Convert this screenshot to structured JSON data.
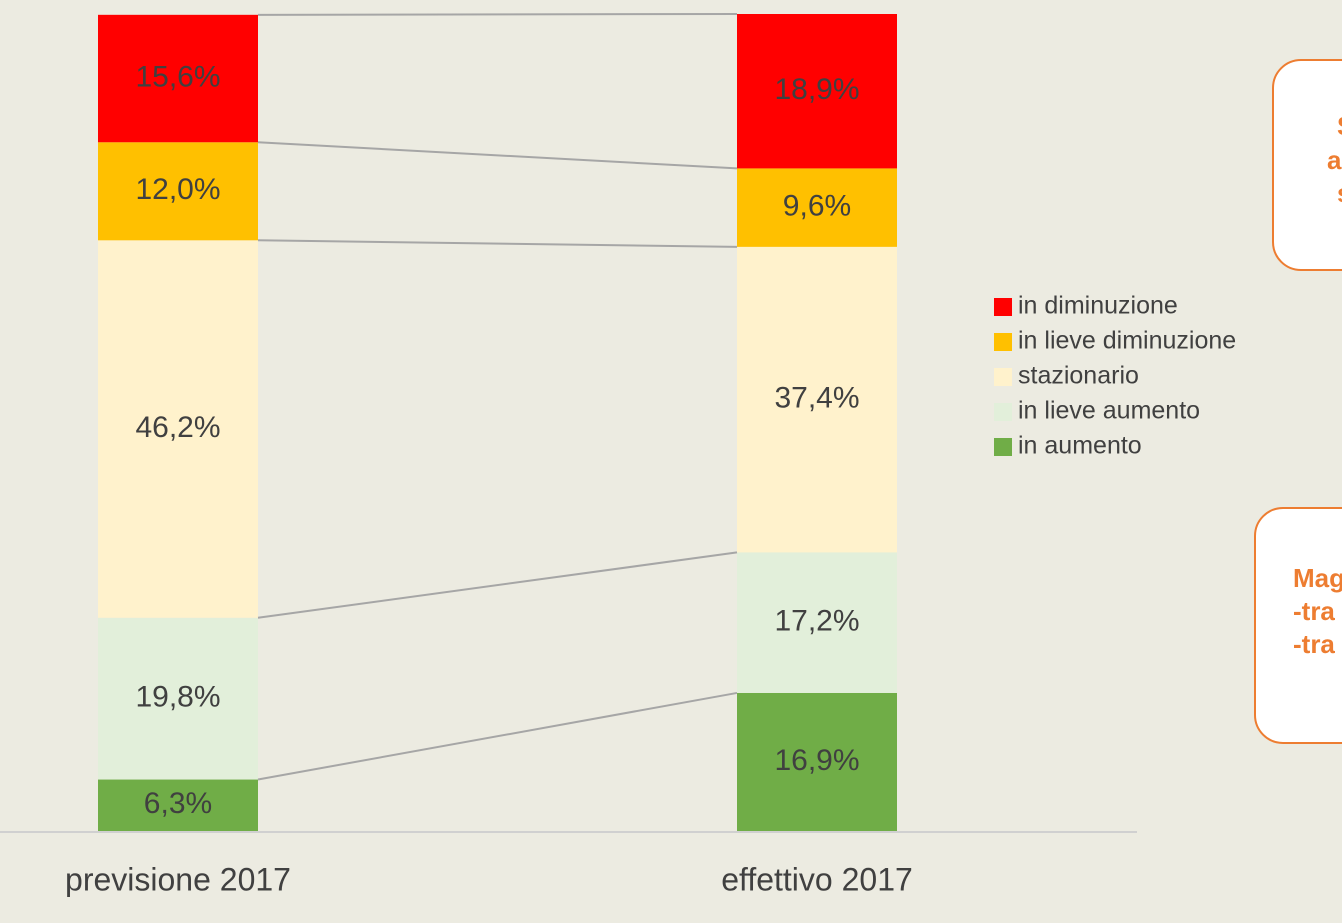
{
  "chart_data": {
    "type": "stacked_bar",
    "categories": [
      "previsione 2017",
      "effettivo 2017"
    ],
    "series": [
      {
        "name": "in diminuzione",
        "color": "#ff0000",
        "values": [
          15.6,
          18.9
        ],
        "value_labels": [
          "15,6%",
          "18,9%"
        ]
      },
      {
        "name": "in lieve diminuzione",
        "color": "#ffc000",
        "values": [
          12.0,
          9.6
        ],
        "value_labels": [
          "12,0%",
          "9,6%"
        ]
      },
      {
        "name": "stazionario",
        "color": "#fff2cc",
        "values": [
          46.2,
          37.4
        ],
        "value_labels": [
          "46,2%",
          "37,4%"
        ]
      },
      {
        "name": "in lieve aumento",
        "color": "#e2efda",
        "values": [
          19.8,
          17.2
        ],
        "value_labels": [
          "19,8%",
          "17,2%"
        ]
      },
      {
        "name": "in aumento",
        "color": "#70ad47",
        "values": [
          6.3,
          16.9
        ],
        "value_labels": [
          "6,3%",
          "16,9%"
        ]
      }
    ],
    "ylim": [
      0,
      100
    ],
    "annotations": [
      {
        "lines": [
          "S",
          "a",
          "s"
        ]
      },
      {
        "lines": [
          "Mag",
          "-tra",
          "-tra"
        ]
      }
    ]
  }
}
